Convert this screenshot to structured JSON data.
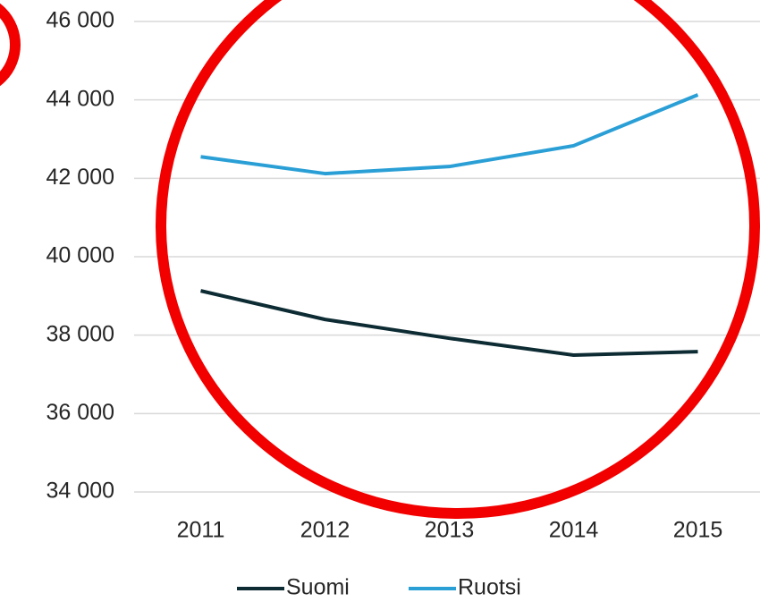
{
  "chart_data": {
    "type": "line",
    "categories": [
      "2011",
      "2012",
      "2013",
      "2014",
      "2015"
    ],
    "series": [
      {
        "name": "Suomi",
        "color": "#0d2b33",
        "values": [
          39130,
          38400,
          37920,
          37490,
          37580
        ]
      },
      {
        "name": "Ruotsi",
        "color": "#2a9fd6",
        "values": [
          42550,
          42120,
          42300,
          42830,
          44130
        ]
      }
    ],
    "ylim": [
      34000,
      46000
    ],
    "yticks": [
      {
        "value": 34000,
        "label": "34 000"
      },
      {
        "value": 36000,
        "label": "36 000"
      },
      {
        "value": 38000,
        "label": "38 000"
      },
      {
        "value": 40000,
        "label": "40 000"
      },
      {
        "value": 42000,
        "label": "42 000"
      },
      {
        "value": 44000,
        "label": "44 000"
      },
      {
        "value": 46000,
        "label": "46 000"
      }
    ],
    "grid": true,
    "legend": "bottom"
  }
}
